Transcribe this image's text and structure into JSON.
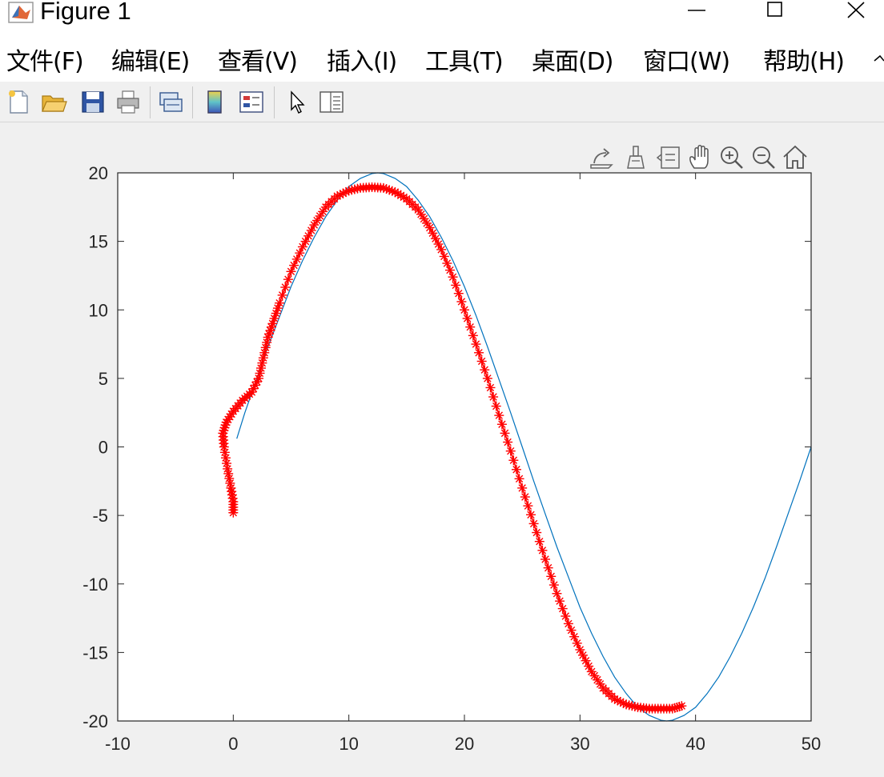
{
  "window": {
    "title": "Figure 1",
    "controls": [
      "minimize",
      "maximize",
      "close"
    ]
  },
  "menu": [
    "文件(F)",
    "编辑(E)",
    "查看(V)",
    "插入(I)",
    "工具(T)",
    "桌面(D)",
    "窗口(W)",
    "帮助(H)"
  ],
  "toolbar": {
    "icons": [
      "new-figure-icon",
      "open-file-icon",
      "save-icon",
      "print-icon",
      "link-plot-icon",
      "colorbar-icon",
      "legend-icon",
      "edit-plot-icon",
      "property-inspector-icon"
    ]
  },
  "axes_toolbar": {
    "icons": [
      "export-icon",
      "brush-icon",
      "data-tips-icon",
      "pan-icon",
      "zoom-in-icon",
      "zoom-out-icon",
      "home-icon"
    ]
  },
  "colors": {
    "reference_line": "#0072bd",
    "marker_series": "#ff0000",
    "figure_bg": "#f0f0f0",
    "axes_bg": "#ffffff"
  },
  "chart_data": {
    "type": "line",
    "xlim": [
      -10,
      50
    ],
    "ylim": [
      -20,
      20
    ],
    "xticks": [
      "-10",
      "0",
      "10",
      "20",
      "30",
      "40",
      "50"
    ],
    "yticks": [
      "20",
      "15",
      "10",
      "5",
      "0",
      "-5",
      "-10",
      "-15",
      "-20"
    ],
    "grid": false,
    "series": [
      {
        "style": "line",
        "color": "#0072bd",
        "x": [
          0.3,
          1,
          2,
          3,
          4,
          5,
          6,
          7,
          8,
          9,
          10,
          11,
          12,
          12.5,
          13,
          14,
          15,
          16,
          17,
          18,
          19,
          20,
          21,
          22,
          23,
          24,
          25,
          26,
          27,
          28,
          29,
          30,
          31,
          32,
          33,
          34,
          35,
          36,
          37,
          37.5,
          38,
          39,
          40,
          41,
          42,
          43,
          44,
          45,
          46,
          47,
          48,
          49,
          50
        ],
        "y": [
          0.6,
          2.5,
          4.9,
          7.3,
          9.5,
          11.7,
          13.6,
          15.3,
          16.8,
          18.0,
          19.0,
          19.6,
          19.95,
          20.0,
          19.95,
          19.6,
          19.0,
          18.0,
          16.8,
          15.3,
          13.6,
          11.7,
          9.6,
          7.3,
          4.9,
          2.5,
          0.0,
          -2.5,
          -4.9,
          -7.3,
          -9.5,
          -11.7,
          -13.6,
          -15.3,
          -16.8,
          -18.0,
          -19.0,
          -19.6,
          -19.95,
          -20.0,
          -19.95,
          -19.6,
          -19.0,
          -18.0,
          -16.8,
          -15.3,
          -13.6,
          -11.7,
          -9.6,
          -7.3,
          -4.9,
          -2.5,
          0.0
        ]
      },
      {
        "style": "asterisk-marker-line",
        "color": "#ff0000",
        "x": [
          0.0,
          0.0,
          -0.2,
          -0.5,
          -0.8,
          -0.9,
          -0.6,
          0.0,
          0.8,
          1.6,
          2.2,
          2.6,
          3.0,
          3.4,
          4.0,
          5.0,
          6.0,
          7.0,
          8.0,
          9.0,
          10.0,
          11.0,
          12.0,
          13.0,
          14.0,
          15.0,
          16.0,
          17.0,
          18.0,
          19.0,
          20.0,
          21.0,
          22.0,
          23.0,
          24.0,
          25.0,
          26.0,
          27.0,
          28.0,
          29.0,
          30.0,
          31.0,
          32.0,
          33.0,
          34.0,
          35.0,
          36.0,
          37.0,
          38.0,
          38.8
        ],
        "y": [
          -4.8,
          -4.0,
          -3.0,
          -1.6,
          0.0,
          1.0,
          1.8,
          2.6,
          3.4,
          4.0,
          5.0,
          6.5,
          8.0,
          9.0,
          10.5,
          12.8,
          14.6,
          16.2,
          17.5,
          18.3,
          18.7,
          18.9,
          18.95,
          18.9,
          18.6,
          18.1,
          17.3,
          16.0,
          14.4,
          12.4,
          10.0,
          7.5,
          5.0,
          2.3,
          -0.3,
          -3.0,
          -5.6,
          -8.2,
          -10.7,
          -12.9,
          -14.8,
          -16.4,
          -17.6,
          -18.4,
          -18.8,
          -19.0,
          -19.1,
          -19.1,
          -19.1,
          -18.9
        ]
      }
    ]
  }
}
